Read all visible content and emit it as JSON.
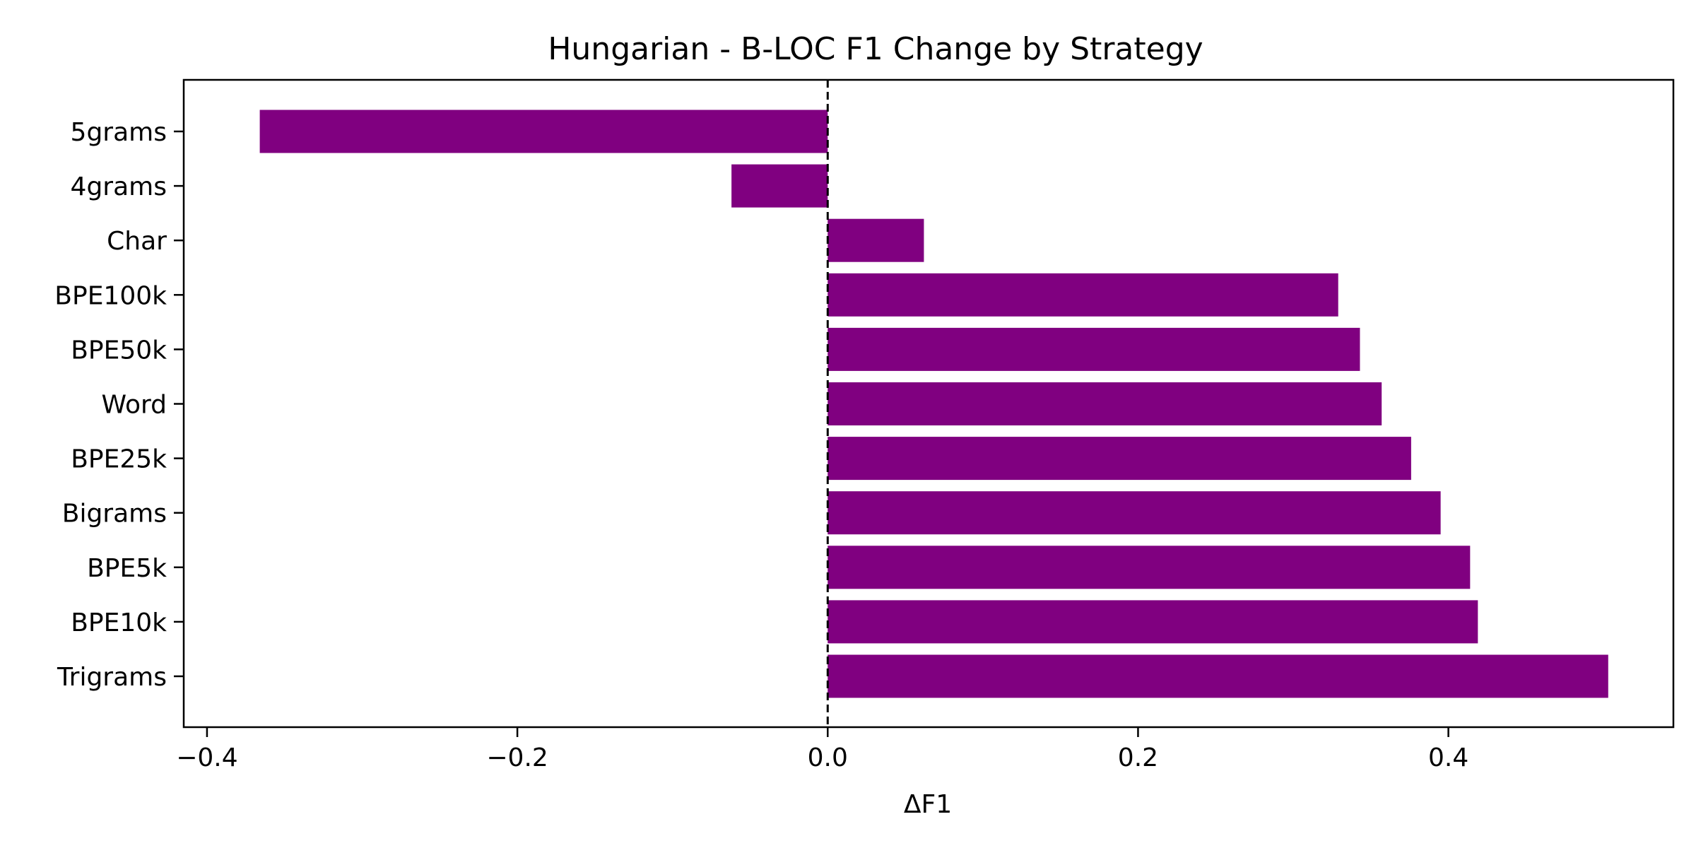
{
  "chart_data": {
    "type": "bar",
    "orientation": "horizontal",
    "title": "Hungarian - B-LOC F1 Change by Strategy",
    "xlabel": "ΔF1",
    "ylabel": "",
    "categories": [
      "Trigrams",
      "BPE10k",
      "BPE5k",
      "Bigrams",
      "BPE25k",
      "Word",
      "BPE50k",
      "BPE100k",
      "Char",
      "4grams",
      "5grams"
    ],
    "values": [
      0.503,
      0.419,
      0.414,
      0.395,
      0.376,
      0.357,
      0.343,
      0.329,
      0.062,
      -0.062,
      -0.366
    ],
    "xlim": [
      -0.415,
      0.545
    ],
    "xticks": [
      -0.4,
      -0.2,
      0.0,
      0.2,
      0.4
    ],
    "xtick_labels": [
      "−0.4",
      "−0.2",
      "0.0",
      "0.2",
      "0.4"
    ],
    "zero_line": "dashed",
    "grid": false,
    "legend": "none",
    "bar_color": "#800080"
  }
}
